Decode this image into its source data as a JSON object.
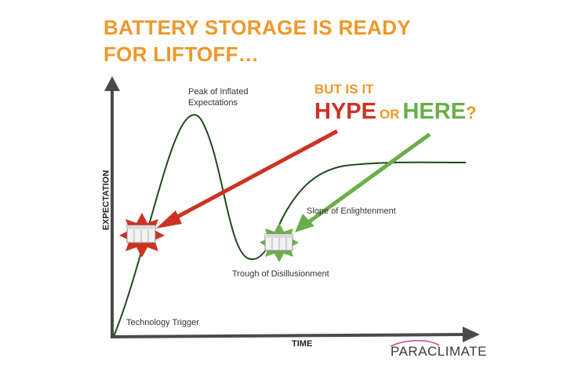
{
  "title": {
    "line1": "BATTERY STORAGE IS READY",
    "line2": "FOR LIFTOFF…"
  },
  "question": {
    "line1": "BUT IS IT",
    "hype": "HYPE",
    "or": "OR",
    "here": "HERE",
    "mark": "?"
  },
  "axes": {
    "y_label": "EXPECTATION",
    "x_label": "TIME"
  },
  "annotations": {
    "peak_line1": "Peak of Inflated",
    "peak_line2": "Expectations",
    "slope": "Slope of Enlightenment",
    "trough": "Trough of Disillusionment",
    "trigger": "Technology Trigger"
  },
  "logo": {
    "text": "PARACLIMATE"
  },
  "colors": {
    "orange": "#F0972A",
    "red": "#CC3324",
    "green": "#6AAE4A",
    "curve": "#1F4A1C",
    "axis": "#4A4A4A"
  },
  "icons": {
    "hype_marker": "battery-container-icon",
    "here_marker": "battery-container-icon"
  }
}
